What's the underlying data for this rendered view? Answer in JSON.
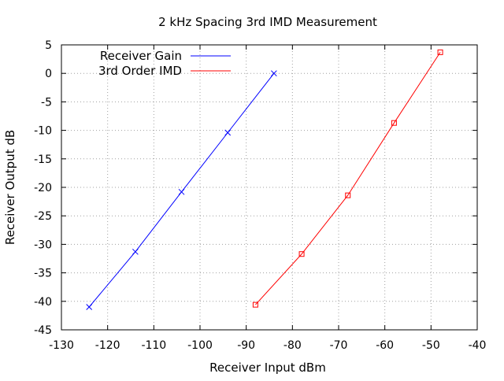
{
  "chart_data": {
    "type": "line",
    "title": "2 kHz Spacing 3rd IMD Measurement",
    "xlabel": "Receiver Input dBm",
    "ylabel": "Receiver Output dB",
    "xlim": [
      -130,
      -40
    ],
    "ylim": [
      -45,
      5
    ],
    "xticks": [
      -130,
      -120,
      -110,
      -100,
      -90,
      -80,
      -70,
      -60,
      -50,
      -40
    ],
    "yticks": [
      -45,
      -40,
      -35,
      -30,
      -25,
      -20,
      -15,
      -10,
      -5,
      0,
      5
    ],
    "grid": true,
    "legend_position": "top-left",
    "series": [
      {
        "name": "Receiver Gain",
        "color": "#0000ff",
        "marker": "x",
        "x": [
          -124,
          -114,
          -104,
          -94,
          -84
        ],
        "y": [
          -41,
          -31.3,
          -20.8,
          -10.4,
          0
        ]
      },
      {
        "name": "3rd Order IMD",
        "color": "#ff0000",
        "marker": "square",
        "x": [
          -88,
          -78,
          -68,
          -58,
          -48
        ],
        "y": [
          -40.6,
          -31.7,
          -21.4,
          -8.7,
          3.7
        ]
      }
    ]
  }
}
